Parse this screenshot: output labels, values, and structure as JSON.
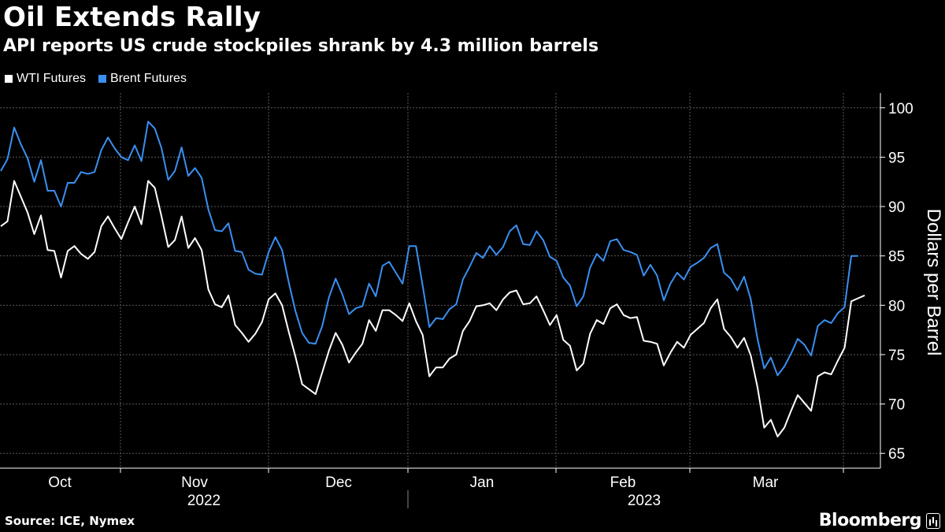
{
  "chart_data": {
    "type": "line",
    "title": "Oil Extends Rally",
    "subtitle": "API reports US crude stockpiles shrank by 4.3 million barrels",
    "ylabel": "Dollars per Barrel",
    "xlabel": "",
    "ylim": [
      63.5,
      101.5
    ],
    "yticks": [
      65,
      70,
      75,
      80,
      85,
      90,
      95,
      100
    ],
    "grid": true,
    "legend_position": "top-left",
    "month_labels": [
      "Oct",
      "Nov",
      "Dec",
      "Jan",
      "Feb",
      "Mar"
    ],
    "year_labels": [
      "2022",
      "2023"
    ],
    "series": [
      {
        "name": "WTI Futures",
        "color": "#ffffff",
        "values": [
          88.0,
          88.5,
          92.6,
          91.0,
          89.4,
          87.2,
          89.1,
          85.6,
          85.5,
          82.8,
          85.5,
          86.0,
          85.2,
          84.7,
          85.4,
          88.0,
          89.0,
          87.8,
          86.7,
          88.4,
          90.0,
          88.2,
          92.6,
          91.9,
          89.0,
          85.9,
          86.6,
          89.0,
          85.8,
          86.8,
          85.6,
          81.6,
          80.1,
          79.8,
          81.0,
          78.0,
          77.2,
          76.3,
          77.1,
          78.3,
          80.6,
          81.2,
          80.0,
          77.3,
          74.8,
          72.0,
          71.5,
          71.0,
          73.2,
          75.4,
          77.2,
          76.0,
          74.2,
          75.2,
          76.1,
          78.5,
          77.4,
          79.5,
          79.5,
          79.0,
          78.4,
          80.2,
          78.4,
          77.0,
          72.8,
          73.7,
          73.7,
          74.6,
          75.0,
          77.4,
          78.4,
          79.9,
          80.0,
          80.2,
          79.5,
          80.6,
          81.3,
          81.5,
          80.1,
          80.2,
          80.9,
          79.5,
          78.0,
          79.0,
          76.5,
          75.9,
          73.4,
          74.1,
          77.1,
          78.5,
          78.1,
          79.7,
          80.1,
          79.0,
          78.7,
          78.8,
          76.4,
          76.3,
          76.1,
          73.9,
          75.2,
          76.3,
          75.7,
          77.0,
          77.6,
          78.2,
          79.7,
          80.6,
          77.6,
          76.8,
          75.7,
          76.7,
          74.9,
          71.7,
          67.6,
          68.4,
          66.7,
          67.6,
          69.3,
          70.9,
          70.1,
          69.3,
          72.8,
          73.2,
          73.0,
          74.4,
          75.7,
          80.4,
          80.7,
          81.0
        ]
      },
      {
        "name": "Brent Futures",
        "color": "#3b8ff0",
        "values": [
          93.6,
          94.8,
          98.0,
          96.3,
          94.9,
          92.5,
          94.7,
          91.6,
          91.6,
          90.0,
          92.4,
          92.4,
          93.5,
          93.3,
          93.5,
          95.7,
          97.0,
          95.9,
          95.0,
          94.7,
          96.2,
          94.6,
          98.6,
          97.9,
          95.9,
          92.7,
          93.6,
          96.0,
          93.1,
          93.9,
          92.9,
          89.7,
          87.6,
          87.5,
          88.3,
          85.5,
          85.4,
          83.6,
          83.2,
          83.1,
          85.4,
          86.9,
          85.6,
          82.3,
          79.4,
          77.2,
          76.2,
          76.1,
          77.9,
          80.8,
          82.7,
          81.1,
          79.1,
          79.7,
          79.9,
          82.2,
          80.9,
          84.0,
          84.4,
          83.3,
          82.2,
          86.0,
          86.0,
          82.0,
          77.8,
          78.7,
          78.6,
          79.6,
          80.1,
          82.6,
          83.9,
          85.3,
          84.8,
          86.0,
          85.1,
          85.9,
          87.5,
          88.1,
          86.2,
          86.1,
          87.5,
          86.6,
          84.9,
          84.5,
          82.8,
          82.0,
          79.9,
          80.9,
          83.8,
          85.2,
          84.5,
          86.5,
          86.7,
          85.6,
          85.4,
          85.1,
          83.0,
          84.1,
          83.0,
          80.5,
          82.2,
          83.3,
          82.6,
          83.9,
          84.3,
          84.8,
          85.8,
          86.2,
          83.3,
          82.7,
          81.5,
          82.9,
          80.6,
          76.6,
          73.6,
          74.7,
          72.9,
          73.8,
          75.1,
          76.6,
          76.0,
          74.9,
          77.9,
          78.5,
          78.2,
          79.2,
          79.8,
          85.0,
          85.0
        ]
      }
    ]
  },
  "footer": {
    "source": "Source: ICE, Nymex",
    "brand": "Bloomberg"
  }
}
